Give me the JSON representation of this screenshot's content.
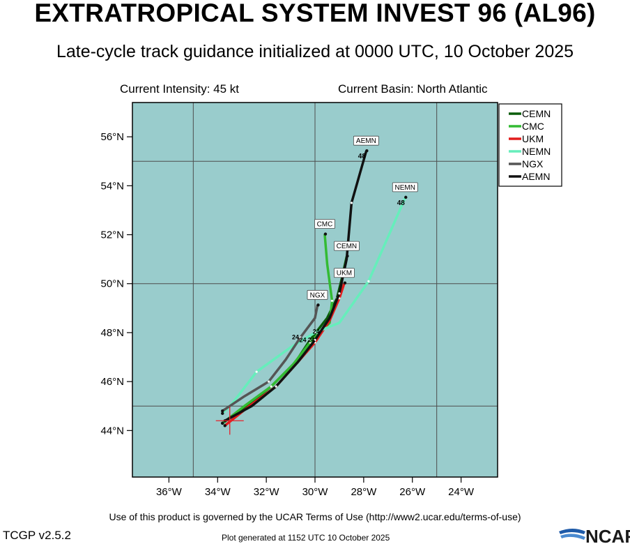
{
  "header": {
    "title": "EXTRATROPICAL SYSTEM INVEST 96 (AL96)",
    "subtitle": "Late-cycle track guidance initialized at 0000 UTC, 10 October 2025",
    "intensity": "Current Intensity: 45 kt",
    "basin": "Current Basin: North Atlantic"
  },
  "footer": {
    "terms": "Use of this product is governed by the UCAR Terms of Use (http://www2.ucar.edu/terms-of-use)",
    "version": "TCGP v2.5.2",
    "generated": "Plot generated at 1152 UTC   10 October 2025",
    "logo_text": "NCAR"
  },
  "colors": {
    "ocean": "#99cccc",
    "grid": "#4d4d4d",
    "current_position": "#e8202a"
  },
  "chart_data": {
    "type": "map-tracks",
    "xlim": [
      -37.5,
      -22.5
    ],
    "ylim": [
      42.1,
      57.4
    ],
    "x_ticks": [
      {
        "value": -36,
        "label": "36°W"
      },
      {
        "value": -34,
        "label": "34°W"
      },
      {
        "value": -32,
        "label": "32°W"
      },
      {
        "value": -30,
        "label": "30°W"
      },
      {
        "value": -28,
        "label": "28°W"
      },
      {
        "value": -26,
        "label": "26°W"
      },
      {
        "value": -24,
        "label": "24°W"
      }
    ],
    "y_ticks": [
      {
        "value": 44,
        "label": "44°N"
      },
      {
        "value": 46,
        "label": "46°N"
      },
      {
        "value": 48,
        "label": "48°N"
      },
      {
        "value": 50,
        "label": "50°N"
      },
      {
        "value": 52,
        "label": "52°N"
      },
      {
        "value": 54,
        "label": "54°N"
      },
      {
        "value": 56,
        "label": "56°N"
      }
    ],
    "grid_lon": [
      -35,
      -30,
      -25
    ],
    "grid_lat": [
      45,
      50,
      55
    ],
    "current_position": {
      "lon": -33.5,
      "lat": 44.4
    },
    "legend_position": "top-right",
    "tracks": [
      {
        "name": "CEMN",
        "color": "#0a5c0a",
        "label": "CEMN",
        "end_hour": "",
        "points": [
          [
            -33.8,
            44.3
          ],
          [
            -32.8,
            45.0
          ],
          [
            -31.8,
            45.8
          ],
          [
            -30.8,
            46.8
          ],
          [
            -30.2,
            47.7
          ],
          [
            -29.5,
            48.6
          ],
          [
            -29.1,
            49.4
          ],
          [
            -28.9,
            50.2
          ],
          [
            -28.7,
            51.1
          ]
        ]
      },
      {
        "name": "CMC",
        "color": "#33bb33",
        "label": "CMC",
        "end_hour": "",
        "points": [
          [
            -33.8,
            44.3
          ],
          [
            -32.9,
            45.0
          ],
          [
            -31.8,
            45.8
          ],
          [
            -30.9,
            46.7
          ],
          [
            -30.2,
            47.6
          ],
          [
            -29.4,
            48.4
          ],
          [
            -29.3,
            49.3
          ],
          [
            -29.5,
            50.8
          ],
          [
            -29.6,
            52.0
          ]
        ]
      },
      {
        "name": "UKM",
        "color": "#e21c1c",
        "label": "UKM",
        "end_hour": "",
        "points": [
          [
            -33.7,
            44.2
          ],
          [
            -32.7,
            45.0
          ],
          [
            -31.6,
            45.8
          ],
          [
            -30.7,
            46.8
          ],
          [
            -30.0,
            47.6
          ],
          [
            -29.4,
            48.5
          ],
          [
            -29.0,
            49.4
          ],
          [
            -28.8,
            50.0
          ]
        ]
      },
      {
        "name": "NEMN",
        "color": "#66eebb",
        "label": "NEMN",
        "end_hour": "48",
        "points": [
          [
            -33.8,
            44.7
          ],
          [
            -33.4,
            45.1
          ],
          [
            -32.4,
            46.4
          ],
          [
            -31.0,
            47.4
          ],
          [
            -30.0,
            48.0
          ],
          [
            -29.0,
            48.4
          ],
          [
            -27.8,
            50.1
          ],
          [
            -26.3,
            53.5
          ]
        ]
      },
      {
        "name": "NGX",
        "color": "#555555",
        "label": "NGX",
        "end_hour": "",
        "points": [
          [
            -33.8,
            44.8
          ],
          [
            -32.9,
            45.4
          ],
          [
            -31.9,
            46.0
          ],
          [
            -31.2,
            46.9
          ],
          [
            -30.6,
            47.8
          ],
          [
            -30.0,
            48.6
          ],
          [
            -29.9,
            49.1
          ]
        ]
      },
      {
        "name": "AEMN",
        "color": "#111111",
        "label": "AEMN",
        "end_hour": "48",
        "points": [
          [
            -33.7,
            44.4
          ],
          [
            -32.6,
            45.0
          ],
          [
            -31.6,
            45.8
          ],
          [
            -30.7,
            46.8
          ],
          [
            -30.0,
            47.7
          ],
          [
            -29.4,
            48.6
          ],
          [
            -29.0,
            49.6
          ],
          [
            -28.7,
            51.0
          ],
          [
            -28.5,
            53.3
          ],
          [
            -27.9,
            55.4
          ]
        ]
      }
    ],
    "hour_markers": [
      {
        "text": "24",
        "lon": -30.8,
        "lat": 47.72
      },
      {
        "text": "24",
        "lon": -30.5,
        "lat": 47.62
      },
      {
        "text": "24",
        "lon": -30.15,
        "lat": 47.62
      },
      {
        "text": "24",
        "lon": -29.95,
        "lat": 47.95
      }
    ]
  }
}
